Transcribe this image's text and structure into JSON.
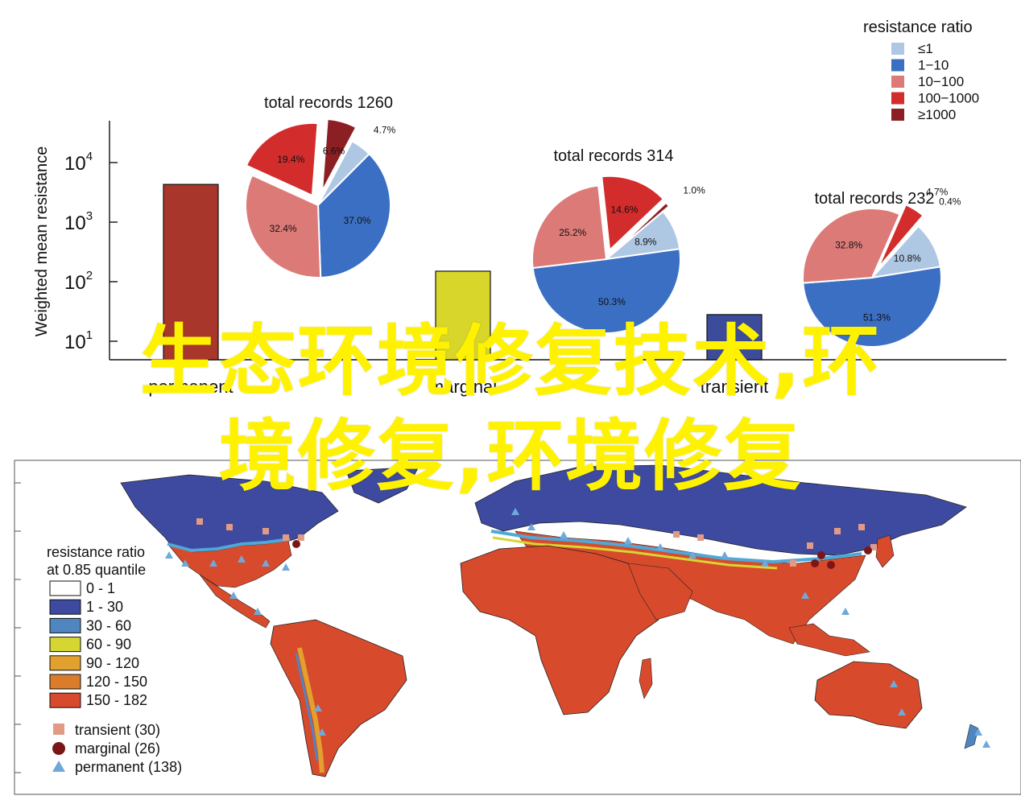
{
  "chart_data": [
    {
      "type": "bar",
      "ylabel": "Weighted mean resistance",
      "yscale": "log",
      "ylim": [
        1,
        100000
      ],
      "yticks": [
        "10",
        "10",
        "10",
        "10"
      ],
      "ytick_exponents": [
        "4",
        "3",
        "2",
        "1"
      ],
      "ytick_values": [
        10000,
        1000,
        100,
        10
      ],
      "categories": [
        "permanent",
        "marginal",
        "transient"
      ],
      "values": [
        4300,
        150,
        28
      ],
      "colors": [
        "#a8362a",
        "#d8d62a",
        "#3d4c9a"
      ]
    },
    {
      "type": "pie",
      "title": "total records 1260",
      "slices": [
        {
          "bin": "≤1",
          "value": 4.7,
          "label": "4.7%",
          "color": "#aec7e3"
        },
        {
          "bin": "1−10",
          "value": 37.0,
          "label": "37.0%",
          "color": "#3b6fc3"
        },
        {
          "bin": "10−100",
          "value": 32.4,
          "label": "32.4%",
          "color": "#dc7a78"
        },
        {
          "bin": "100−1000",
          "value": 19.4,
          "label": "19.4%",
          "color": "#d22c2c"
        },
        {
          "bin": "≥1000",
          "value": 6.6,
          "label": "6.6%",
          "color": "#8c1f24"
        }
      ]
    },
    {
      "type": "pie",
      "title": "total records 314",
      "slices": [
        {
          "bin": "≤1",
          "value": 8.9,
          "label": "8.9%",
          "color": "#aec7e3"
        },
        {
          "bin": "1−10",
          "value": 50.3,
          "label": "50.3%",
          "color": "#3b6fc3"
        },
        {
          "bin": "10−100",
          "value": 25.2,
          "label": "25.2%",
          "color": "#dc7a78"
        },
        {
          "bin": "100−1000",
          "value": 14.6,
          "label": "14.6%",
          "color": "#d22c2c"
        },
        {
          "bin": "≥1000",
          "value": 1.0,
          "label": "1.0%",
          "color": "#8c1f24"
        }
      ]
    },
    {
      "type": "pie",
      "title": "total records 232",
      "slices": [
        {
          "bin": "≤1",
          "value": 10.8,
          "label": "10.8%",
          "color": "#aec7e3"
        },
        {
          "bin": "1−10",
          "value": 51.3,
          "label": "51.3%",
          "color": "#3b6fc3"
        },
        {
          "bin": "10−100",
          "value": 32.8,
          "label": "32.8%",
          "color": "#dc7a78"
        },
        {
          "bin": "100−1000",
          "value": 4.7,
          "label": "4.7%",
          "color": "#d22c2c"
        },
        {
          "bin": "≥1000",
          "value": 0.4,
          "label": "0.4%",
          "color": "#8c1f24"
        }
      ]
    }
  ],
  "pie_legend": {
    "title": "resistance ratio",
    "items": [
      {
        "label": "≤1",
        "color": "#aec7e3"
      },
      {
        "label": "1−10",
        "color": "#3b6fc3"
      },
      {
        "label": "10−100",
        "color": "#dc7a78"
      },
      {
        "label": "100−1000",
        "color": "#d22c2c"
      },
      {
        "label": "≥1000",
        "color": "#8c1f24"
      }
    ]
  },
  "map": {
    "legend_title_1": "resistance ratio",
    "legend_title_2": "at 0.85 quantile",
    "classes": [
      {
        "label": "0 - 1",
        "color": "#ffffff"
      },
      {
        "label": "1 - 30",
        "color": "#3d4aa0"
      },
      {
        "label": "30 - 60",
        "color": "#4f86c0"
      },
      {
        "label": "60 - 90",
        "color": "#d6d632"
      },
      {
        "label": "90 - 120",
        "color": "#e2a02e"
      },
      {
        "label": "120 - 150",
        "color": "#db7b2c"
      },
      {
        "label": "150 - 182",
        "color": "#d84a2c"
      }
    ],
    "markers": [
      {
        "label": "transient (30)",
        "shape": "square",
        "color": "#e19a86"
      },
      {
        "label": "marginal (26)",
        "shape": "circle",
        "color": "#7a1616"
      },
      {
        "label": "permanent (138)",
        "shape": "triangle",
        "color": "#6fa9da"
      }
    ]
  },
  "overlay_text": [
    "生态环境修复技术,环",
    "境修复,环境修复"
  ]
}
